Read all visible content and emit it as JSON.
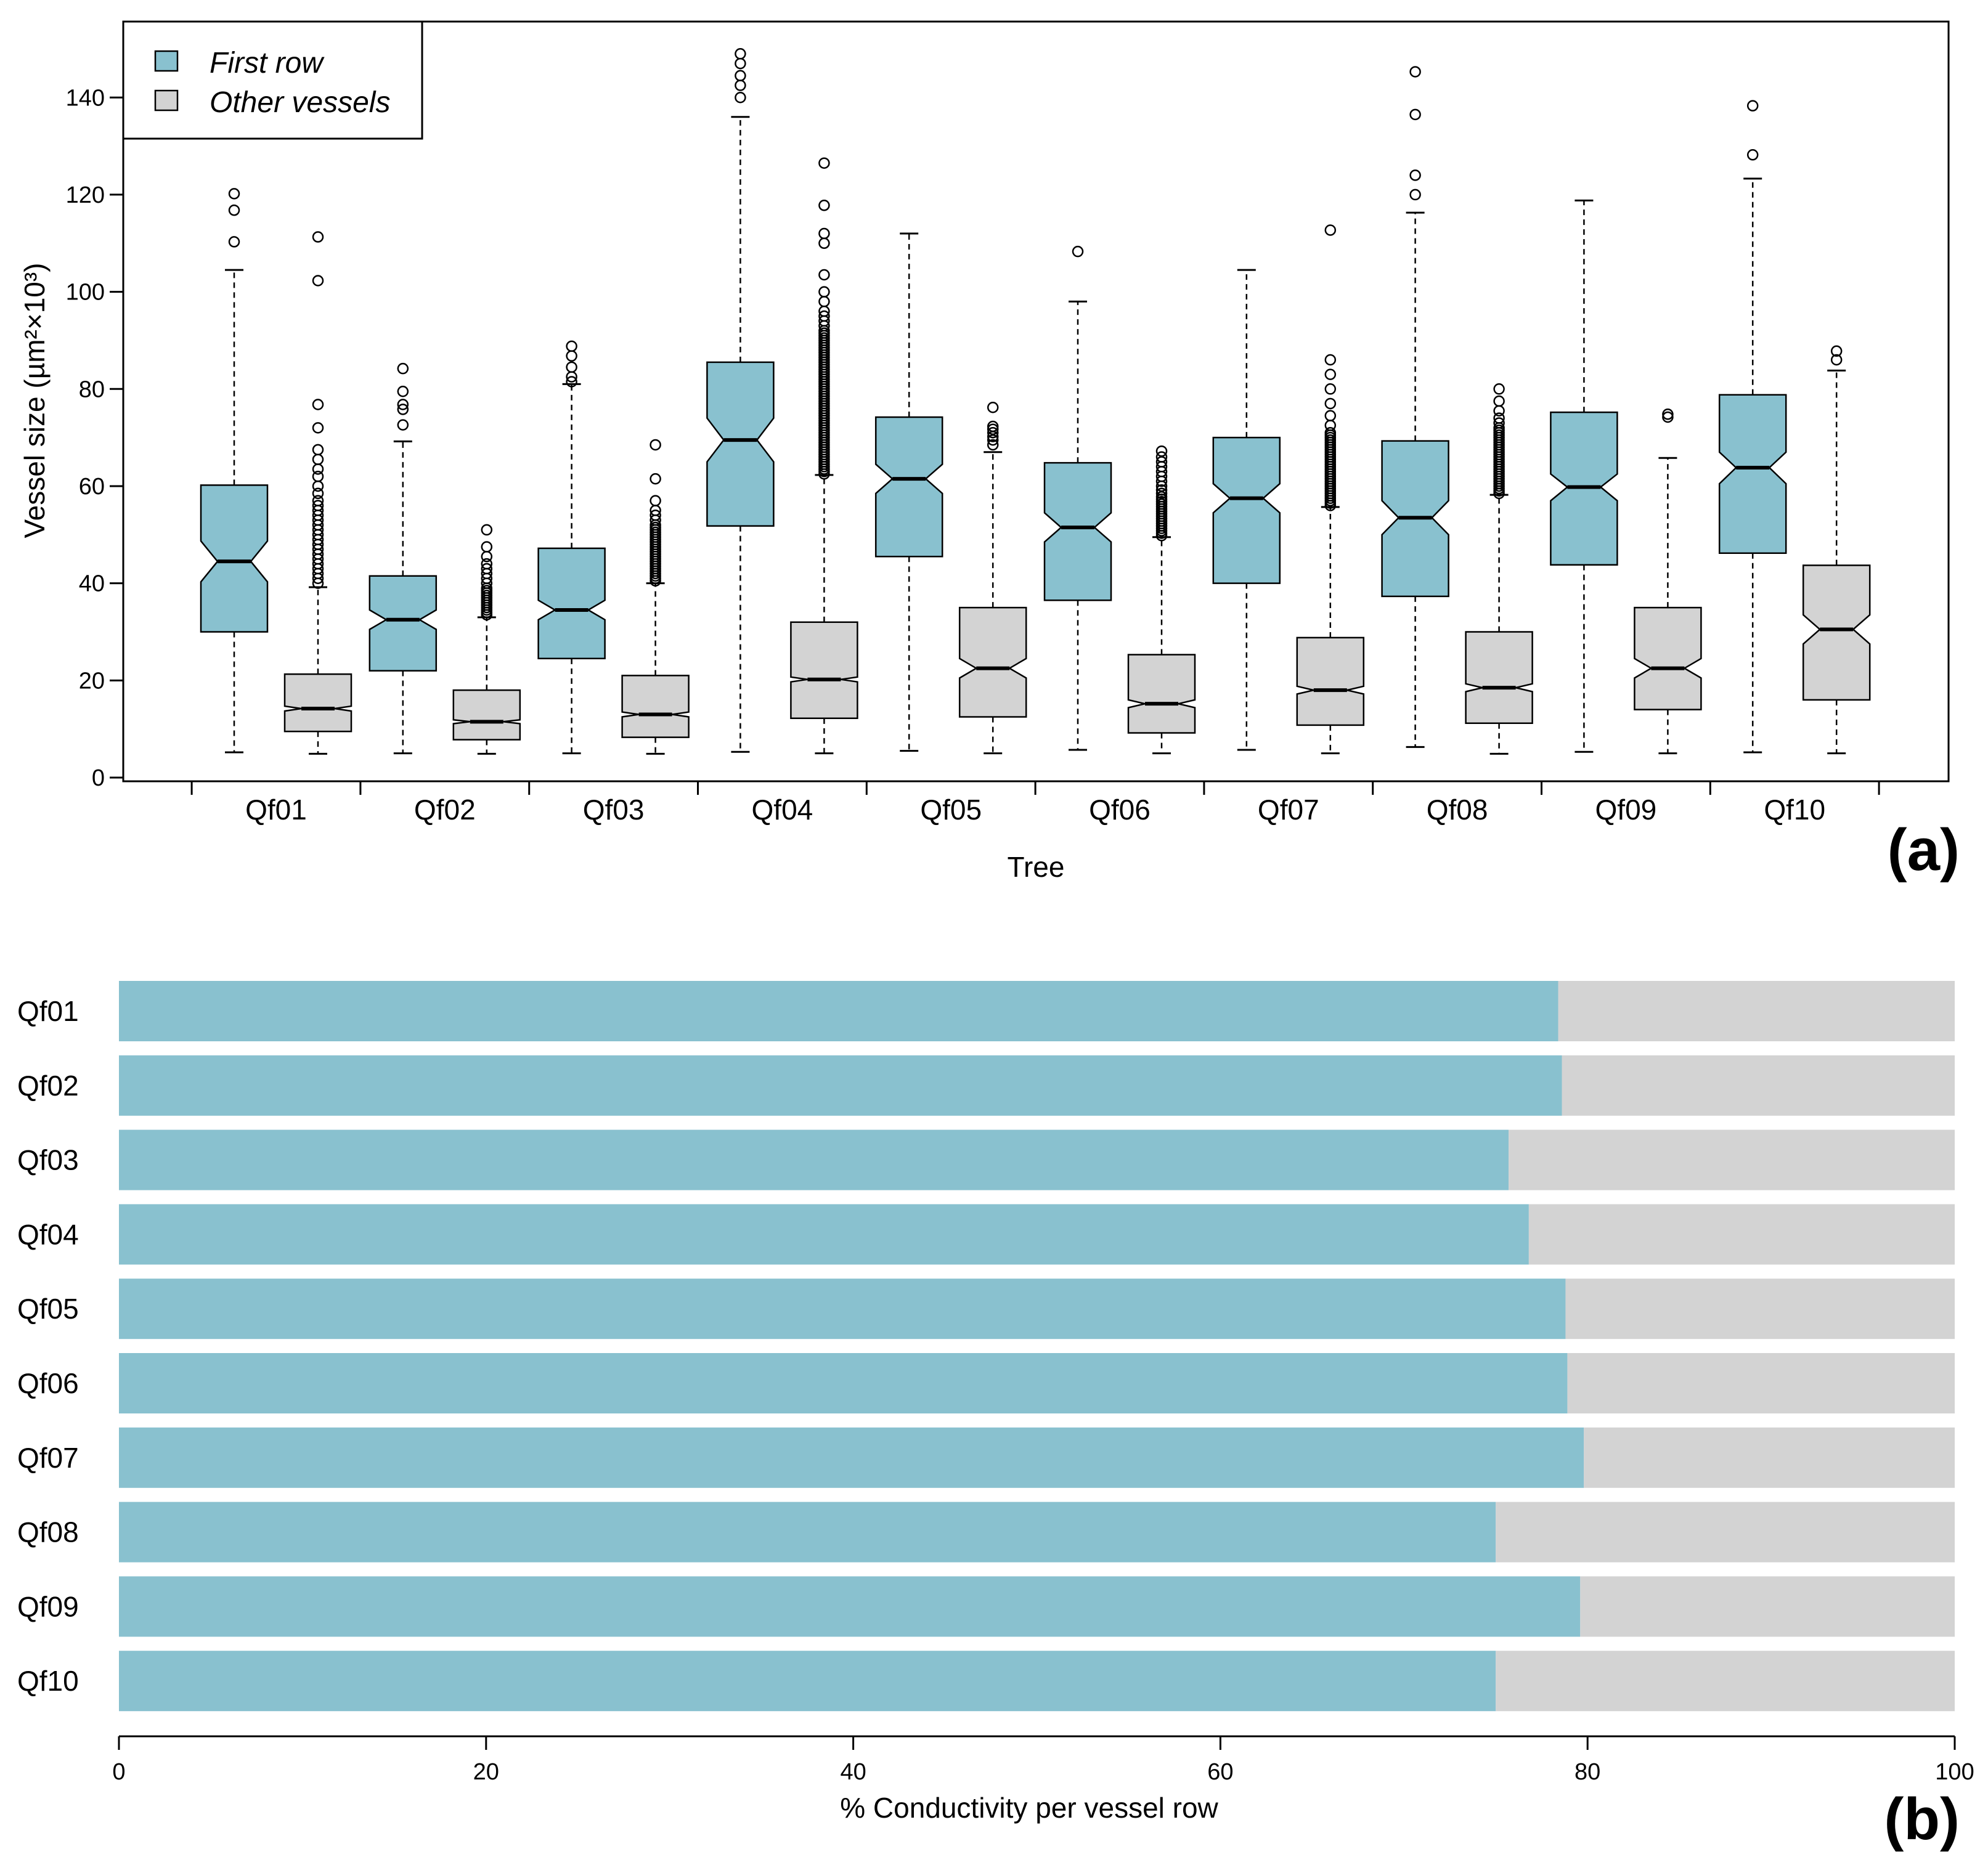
{
  "colors": {
    "first_row": "#89c1cf",
    "other": "#d3d3d3",
    "ink": "#000000"
  },
  "chart_data": [
    {
      "type": "boxplot",
      "panel_label": "(a)",
      "xlabel": "Tree",
      "ylabel": "Vessel size (µm²×10³)",
      "ylim": [
        0,
        155
      ],
      "yticks": [
        0,
        20,
        40,
        60,
        80,
        100,
        120,
        140
      ],
      "notched": true,
      "legend": {
        "position": "top-left",
        "entries": [
          "First row",
          "Other vessels"
        ]
      },
      "categories": [
        "Qf01",
        "Qf02",
        "Qf03",
        "Qf04",
        "Qf05",
        "Qf06",
        "Qf07",
        "Qf08",
        "Qf09",
        "Qf10"
      ],
      "series": [
        {
          "name": "First row",
          "boxes": [
            {
              "whisker_low": 5.2,
              "q1": 30.0,
              "median": 44.5,
              "q3": 60.2,
              "whisker_high": 104.5,
              "notch_low": 40.3,
              "notch_high": 48.7,
              "outliers": [
                110.3,
                116.8,
                120.2
              ]
            },
            {
              "whisker_low": 5.0,
              "q1": 22.0,
              "median": 32.5,
              "q3": 41.5,
              "whisker_high": 69.2,
              "notch_low": 30.5,
              "notch_high": 34.5,
              "outliers": [
                72.6,
                75.8,
                76.8,
                79.5,
                84.2
              ]
            },
            {
              "whisker_low": 5.0,
              "q1": 24.5,
              "median": 34.5,
              "q3": 47.2,
              "whisker_high": 81.0,
              "notch_low": 32.5,
              "notch_high": 36.5,
              "outliers": [
                81.5,
                82.5,
                84.5,
                86.8,
                88.8
              ]
            },
            {
              "whisker_low": 5.3,
              "q1": 51.8,
              "median": 69.5,
              "q3": 85.5,
              "whisker_high": 136.0,
              "notch_low": 65.0,
              "notch_high": 74.0,
              "outliers": [
                140.0,
                142.5,
                144.5,
                147.0,
                149.0
              ]
            },
            {
              "whisker_low": 5.5,
              "q1": 45.5,
              "median": 61.5,
              "q3": 74.2,
              "whisker_high": 112.0,
              "notch_low": 58.5,
              "notch_high": 64.5,
              "outliers": []
            },
            {
              "whisker_low": 5.7,
              "q1": 36.5,
              "median": 51.5,
              "q3": 64.8,
              "whisker_high": 98.0,
              "notch_low": 48.5,
              "notch_high": 54.5,
              "outliers": [
                108.3
              ]
            },
            {
              "whisker_low": 5.7,
              "q1": 40.0,
              "median": 57.5,
              "q3": 70.0,
              "whisker_high": 104.5,
              "notch_low": 54.5,
              "notch_high": 60.5,
              "outliers": []
            },
            {
              "whisker_low": 6.3,
              "q1": 37.3,
              "median": 53.5,
              "q3": 69.3,
              "whisker_high": 116.3,
              "notch_low": 50.0,
              "notch_high": 57.0,
              "outliers": [
                120.0,
                124.0,
                136.5,
                145.3
              ]
            },
            {
              "whisker_low": 5.3,
              "q1": 43.8,
              "median": 59.8,
              "q3": 75.2,
              "whisker_high": 118.8,
              "notch_low": 57.0,
              "notch_high": 62.5,
              "outliers": []
            },
            {
              "whisker_low": 5.2,
              "q1": 46.2,
              "median": 63.8,
              "q3": 78.8,
              "whisker_high": 123.3,
              "notch_low": 60.5,
              "notch_high": 67.0,
              "outliers": [
                128.2,
                138.3
              ]
            }
          ]
        },
        {
          "name": "Other vessels",
          "boxes": [
            {
              "whisker_low": 4.9,
              "q1": 9.5,
              "median": 14.2,
              "q3": 21.3,
              "whisker_high": 39.2,
              "notch_low": 13.7,
              "notch_high": 14.7,
              "outliers": [
                40,
                41,
                42,
                43,
                44,
                45,
                46,
                47,
                48,
                49,
                50,
                51,
                52,
                53,
                54,
                55,
                56,
                57,
                58.5,
                60,
                62,
                63.5,
                65.5,
                67.5,
                72,
                76.8,
                102.3,
                111.3
              ]
            },
            {
              "whisker_low": 4.9,
              "q1": 7.8,
              "median": 11.5,
              "q3": 18.0,
              "whisker_high": 33.0,
              "notch_low": 11.1,
              "notch_high": 11.9,
              "outliers": [
                33.5,
                34,
                34.5,
                35,
                35.5,
                36,
                36.5,
                37,
                37.5,
                38,
                38.5,
                39,
                40,
                41,
                42,
                43,
                44,
                45.5,
                47.5,
                51.0
              ]
            },
            {
              "whisker_low": 4.9,
              "q1": 8.3,
              "median": 13.0,
              "q3": 21.0,
              "whisker_high": 40.0,
              "notch_low": 12.5,
              "notch_high": 13.5,
              "outliers": [
                40.5,
                41,
                41.5,
                42,
                42.5,
                43,
                43.5,
                44,
                44.5,
                45,
                45.5,
                46,
                46.5,
                47,
                47.5,
                48,
                48.5,
                49,
                49.5,
                50,
                50.5,
                51,
                51.5,
                52,
                53,
                54,
                55,
                57,
                61.5,
                68.5
              ]
            },
            {
              "whisker_low": 5.0,
              "q1": 12.2,
              "median": 20.2,
              "q3": 32.0,
              "whisker_high": 62.3,
              "notch_low": 19.7,
              "notch_high": 20.7,
              "outliers": [
                62.5,
                63,
                63.5,
                64,
                64.5,
                65,
                65.5,
                66,
                66.5,
                67,
                67.5,
                68,
                68.5,
                69,
                69.5,
                70,
                70.5,
                71,
                71.5,
                72,
                72.5,
                73,
                73.5,
                74,
                74.5,
                75,
                75.5,
                76,
                76.5,
                77,
                77.5,
                78,
                78.5,
                79,
                79.5,
                80,
                80.5,
                81,
                81.5,
                82,
                82.5,
                83,
                83.5,
                84,
                84.5,
                85,
                85.5,
                86,
                86.5,
                87,
                87.5,
                88,
                88.5,
                89,
                89.5,
                90,
                90.5,
                91,
                91.5,
                92,
                93,
                94,
                95,
                96,
                98,
                100,
                103.5,
                110,
                112,
                117.8,
                126.5
              ]
            },
            {
              "whisker_low": 5.0,
              "q1": 12.5,
              "median": 22.5,
              "q3": 35.0,
              "whisker_high": 67.0,
              "notch_low": 20.5,
              "notch_high": 24.5,
              "outliers": [
                68.5,
                69.5,
                70.2,
                71,
                71.7,
                72.3,
                76.2
              ]
            },
            {
              "whisker_low": 5.0,
              "q1": 9.2,
              "median": 15.2,
              "q3": 25.3,
              "whisker_high": 49.5,
              "notch_low": 14.4,
              "notch_high": 16.0,
              "outliers": [
                49.8,
                50.3,
                50.8,
                51.3,
                51.8,
                52.3,
                52.8,
                53.3,
                53.8,
                54.3,
                54.8,
                55.3,
                55.8,
                56.3,
                56.8,
                57.3,
                57.8,
                58.5,
                59.2,
                60,
                61,
                62,
                63,
                64,
                65,
                66,
                67.2
              ]
            },
            {
              "whisker_low": 5.0,
              "q1": 10.8,
              "median": 18.0,
              "q3": 28.8,
              "whisker_high": 55.7,
              "notch_low": 17.2,
              "notch_high": 18.8,
              "outliers": [
                56,
                56.5,
                57,
                57.5,
                58,
                58.5,
                59,
                59.5,
                60,
                60.5,
                61,
                61.5,
                62,
                62.5,
                63,
                63.5,
                64,
                64.5,
                65,
                65.5,
                66,
                66.5,
                67,
                67.5,
                68,
                68.5,
                69,
                69.5,
                70,
                70.5,
                71,
                72.5,
                74.5,
                77,
                80,
                83,
                86,
                112.7
              ]
            },
            {
              "whisker_low": 4.9,
              "q1": 11.2,
              "median": 18.5,
              "q3": 30.0,
              "whisker_high": 58.2,
              "notch_low": 17.7,
              "notch_high": 19.3,
              "outliers": [
                58.5,
                59,
                59.5,
                60,
                60.5,
                61,
                61.5,
                62,
                62.5,
                63,
                63.5,
                64,
                64.5,
                65,
                65.5,
                66,
                66.5,
                67,
                67.5,
                68,
                68.5,
                69,
                69.5,
                70,
                70.5,
                71,
                71.5,
                72,
                73,
                74,
                75.5,
                77.5,
                80.0
              ]
            },
            {
              "whisker_low": 5.0,
              "q1": 14.0,
              "median": 22.5,
              "q3": 35.0,
              "whisker_high": 65.8,
              "notch_low": 20.5,
              "notch_high": 24.5,
              "outliers": [
                74.2,
                74.8
              ]
            },
            {
              "whisker_low": 5.0,
              "q1": 16.0,
              "median": 30.5,
              "q3": 43.7,
              "whisker_high": 83.8,
              "notch_low": 27.5,
              "notch_high": 33.5,
              "outliers": [
                86.0,
                87.8
              ]
            }
          ]
        }
      ]
    },
    {
      "type": "bar",
      "orientation": "horizontal",
      "stacked": true,
      "panel_label": "(b)",
      "xlabel": "% Conductivity per vessel row",
      "xlim": [
        0,
        100
      ],
      "xticks": [
        0,
        20,
        40,
        60,
        80,
        100
      ],
      "categories": [
        "Qf01",
        "Qf02",
        "Qf03",
        "Qf04",
        "Qf05",
        "Qf06",
        "Qf07",
        "Qf08",
        "Qf09",
        "Qf10"
      ],
      "series": [
        {
          "name": "First row",
          "values": [
            78.4,
            78.6,
            75.7,
            76.8,
            78.8,
            78.9,
            79.8,
            75.0,
            79.6,
            75.0
          ]
        },
        {
          "name": "Other vessels",
          "values": [
            21.6,
            21.4,
            24.3,
            23.2,
            21.2,
            21.1,
            20.2,
            25.0,
            20.4,
            25.0
          ]
        }
      ]
    }
  ]
}
